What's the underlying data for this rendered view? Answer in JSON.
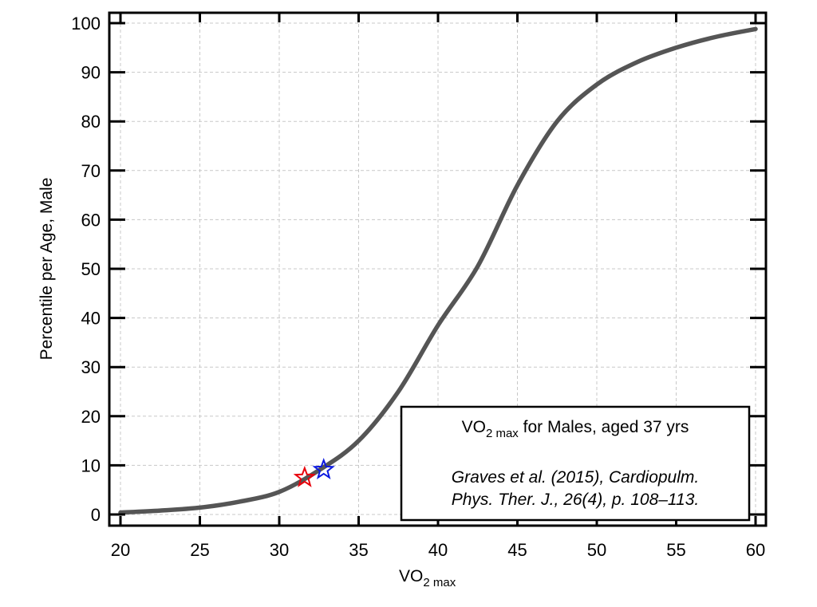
{
  "chart_data": {
    "type": "line",
    "title": "",
    "xlabel": "VO",
    "xlabel_sub": "2 max",
    "ylabel": "Percentile per Age, Male",
    "xlim": [
      20,
      60
    ],
    "ylim": [
      0,
      100
    ],
    "grid": true,
    "x_ticks": [
      20,
      25,
      30,
      35,
      40,
      45,
      50,
      55,
      60
    ],
    "x_tick_labels": [
      "20",
      "25",
      "30",
      "35",
      "40",
      "45",
      "50",
      "55",
      "60"
    ],
    "y_ticks": [
      0,
      10,
      20,
      30,
      40,
      50,
      60,
      70,
      80,
      90,
      100
    ],
    "y_tick_labels": [
      "0",
      "10",
      "20",
      "30",
      "40",
      "50",
      "60",
      "70",
      "80",
      "90",
      "100"
    ],
    "series": [
      {
        "name": "Percentile curve",
        "color": "#555555",
        "x": [
          20,
          22.5,
          25,
          27.5,
          30,
          32.5,
          35,
          37.5,
          40,
          42.5,
          45,
          47.5,
          50,
          52.5,
          55,
          57.5,
          60
        ],
        "y": [
          0.4,
          0.8,
          1.4,
          2.6,
          4.6,
          9.0,
          15.0,
          25.0,
          38.5,
          50.5,
          67.0,
          80.0,
          87.5,
          92.0,
          95.0,
          97.2,
          98.8
        ]
      }
    ],
    "markers": [
      {
        "name": "red-star",
        "shape": "star",
        "color": "#e8000b",
        "x": 31.6,
        "y": 7.5
      },
      {
        "name": "blue-star",
        "shape": "star",
        "color": "#0a18e0",
        "x": 32.8,
        "y": 9.1
      }
    ],
    "legend": {
      "placement": "bottom-right",
      "title_main": "VO",
      "title_sub": "2 max",
      "title_rest": " for Males, aged 37 yrs",
      "citation_line1": "Graves et al. (2015), Cardiopulm.",
      "citation_line2": "Phys. Ther. J., 26(4), p. 108–113."
    }
  }
}
